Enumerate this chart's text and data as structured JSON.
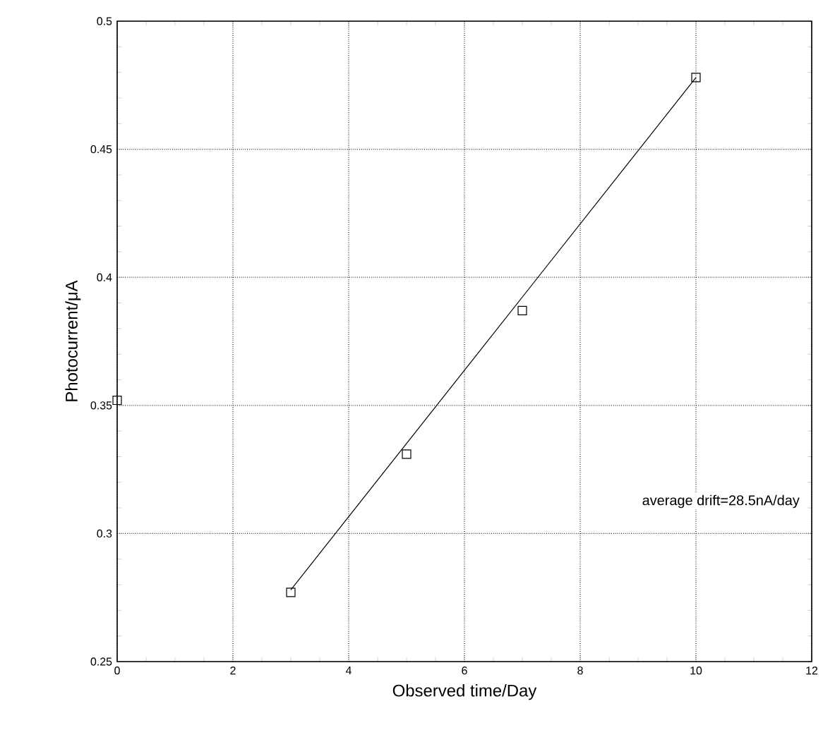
{
  "chart_data": {
    "type": "scatter",
    "xlabel": "Observed time/Day",
    "ylabel": "Photocurrent/μA",
    "series": [
      {
        "color": "#000000",
        "marker": "square",
        "x": [
          0,
          3,
          5,
          7,
          10
        ],
        "values": [
          0.352,
          0.277,
          0.331,
          0.387,
          0.478
        ]
      },
      {
        "type": "line",
        "color": "#000000",
        "marker": "none",
        "line_style": "solid",
        "x": [
          3,
          10
        ],
        "values": [
          0.278,
          0.478
        ]
      }
    ],
    "xlim": [
      0,
      12
    ],
    "xticks": [
      0,
      2,
      4,
      6,
      8,
      10,
      12
    ],
    "ylim": [
      0.25,
      0.5
    ],
    "yticks": [
      0.25,
      0.3,
      0.35,
      0.4,
      0.45,
      0.5
    ],
    "grid": true,
    "annotations": [
      "average drift=28.5nA/day"
    ]
  }
}
